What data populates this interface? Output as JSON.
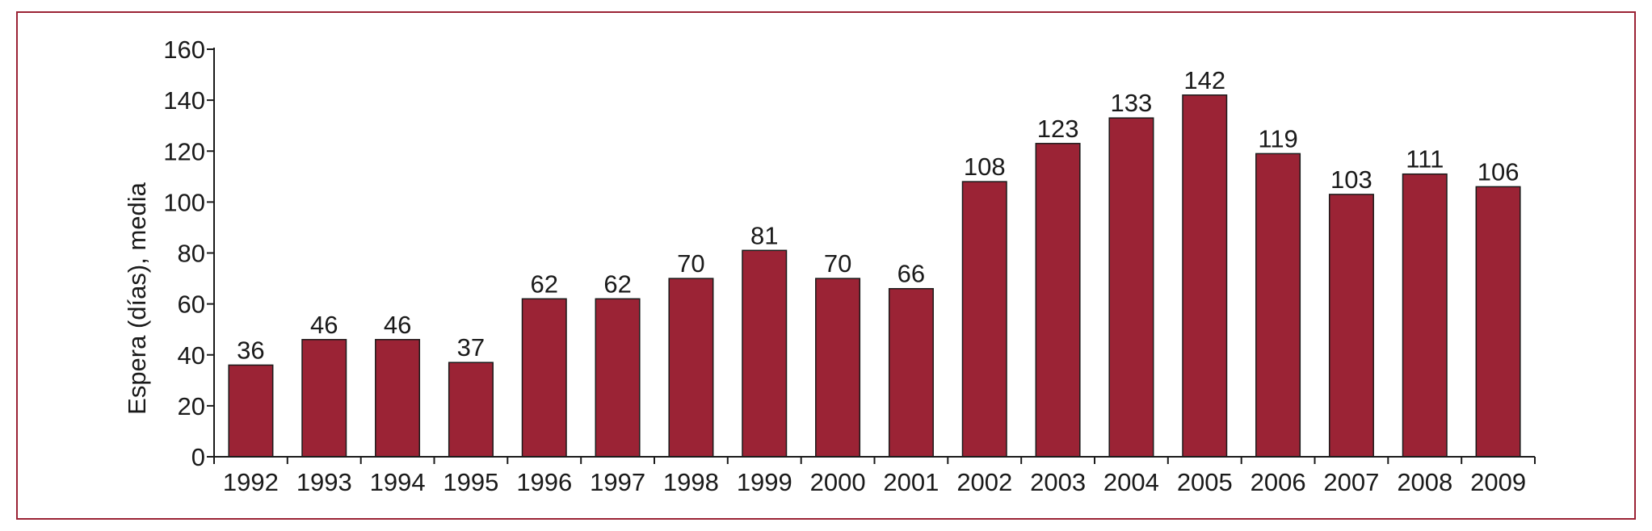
{
  "chart_data": {
    "type": "bar",
    "title": "",
    "xlabel": "",
    "ylabel": "Espera (días), media",
    "ylim": [
      0,
      160
    ],
    "yticks": [
      0,
      20,
      40,
      60,
      80,
      100,
      120,
      140,
      160
    ],
    "grid": false,
    "legend": "none",
    "categories": [
      "1992",
      "1993",
      "1994",
      "1995",
      "1996",
      "1997",
      "1998",
      "1999",
      "2000",
      "2001",
      "2002",
      "2003",
      "2004",
      "2005",
      "2006",
      "2007",
      "2008",
      "2009"
    ],
    "values": [
      36,
      46,
      46,
      37,
      62,
      62,
      70,
      81,
      70,
      66,
      108,
      123,
      133,
      142,
      119,
      103,
      111,
      106
    ],
    "data_labels": [
      "36",
      "46",
      "46",
      "37",
      "62",
      "62",
      "70",
      "81",
      "70",
      "66",
      "108",
      "123",
      "133",
      "142",
      "119",
      "103",
      "111",
      "106"
    ],
    "colors": {
      "bar": "#9b2335",
      "frame": "#9b2335",
      "axis": "#1a1a1a"
    }
  }
}
